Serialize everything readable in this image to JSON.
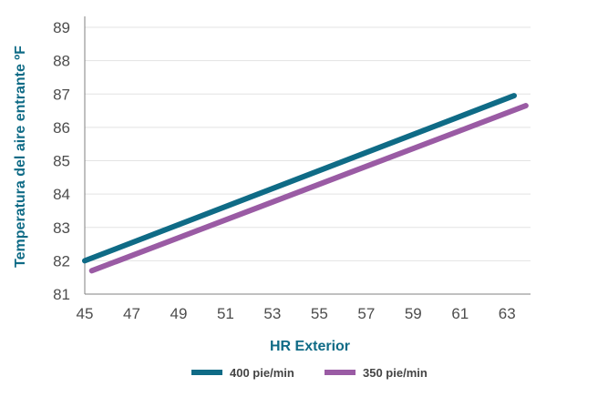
{
  "chart_data": {
    "type": "line",
    "xlabel": "HR Exterior",
    "ylabel": "Temperatura del aire entrante ºF",
    "xlim": [
      45,
      64
    ],
    "ylim": [
      81,
      89
    ],
    "x_ticks": [
      45,
      47,
      49,
      51,
      53,
      55,
      57,
      59,
      61,
      63
    ],
    "y_ticks": [
      81,
      82,
      83,
      84,
      85,
      86,
      87,
      88,
      89
    ],
    "grid": "horizontal",
    "legend_position": "bottom",
    "series": [
      {
        "name": "400 pie/min",
        "color": "#0f6b86",
        "x": [
          45,
          63.3
        ],
        "y": [
          82.0,
          86.95
        ]
      },
      {
        "name": "350 pie/min",
        "color": "#9a5ba4",
        "x": [
          45.3,
          63.8
        ],
        "y": [
          81.7,
          86.65
        ]
      }
    ]
  }
}
